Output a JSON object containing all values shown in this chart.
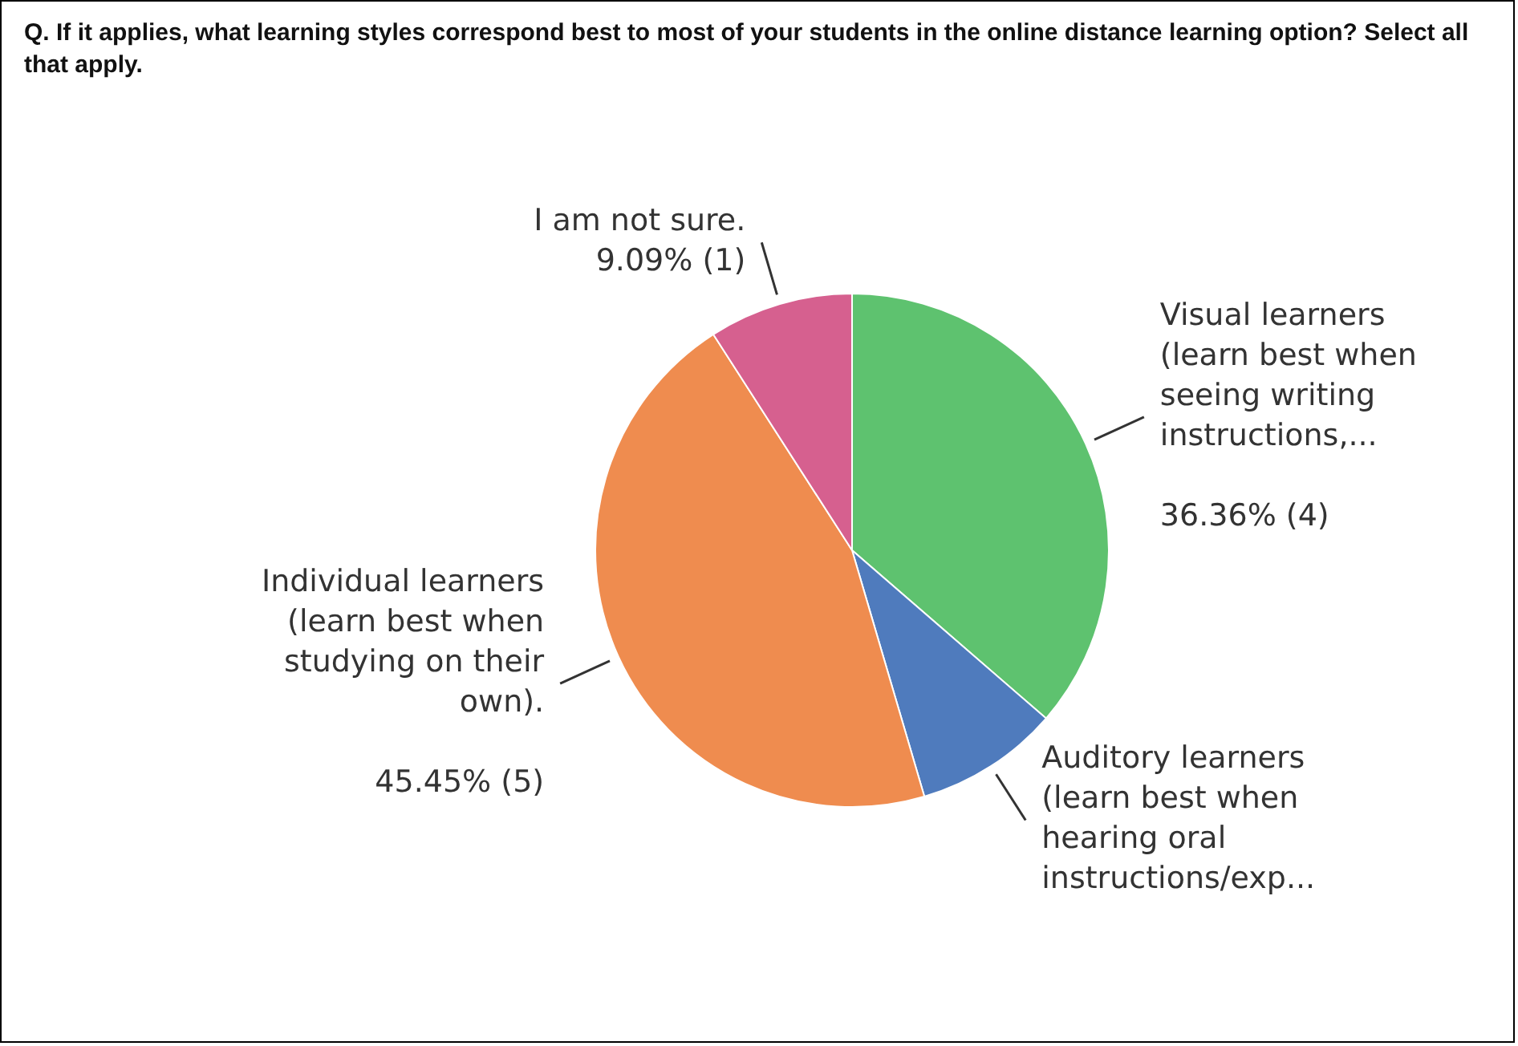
{
  "chart_data": {
    "type": "pie",
    "title": "Q. If it applies, what learning styles correspond best to most of your students in the online distance learning option? Select all that apply.",
    "categories": [
      "Visual learners (learn best when seeing writing instructions,...",
      "Auditory learners (learn best when hearing oral instructions/exp...",
      "Individual learners (learn best when studying on their own).",
      "I am not sure."
    ],
    "values": [
      36.36,
      9.09,
      45.45,
      9.09
    ],
    "colors": [
      "#5ec26f",
      "#4f7bbd",
      "#ef8c4f",
      "#d6608f"
    ],
    "value_labels": [
      "36.36% (4)",
      null,
      "45.45% (5)",
      "9.09% (1)"
    ]
  }
}
